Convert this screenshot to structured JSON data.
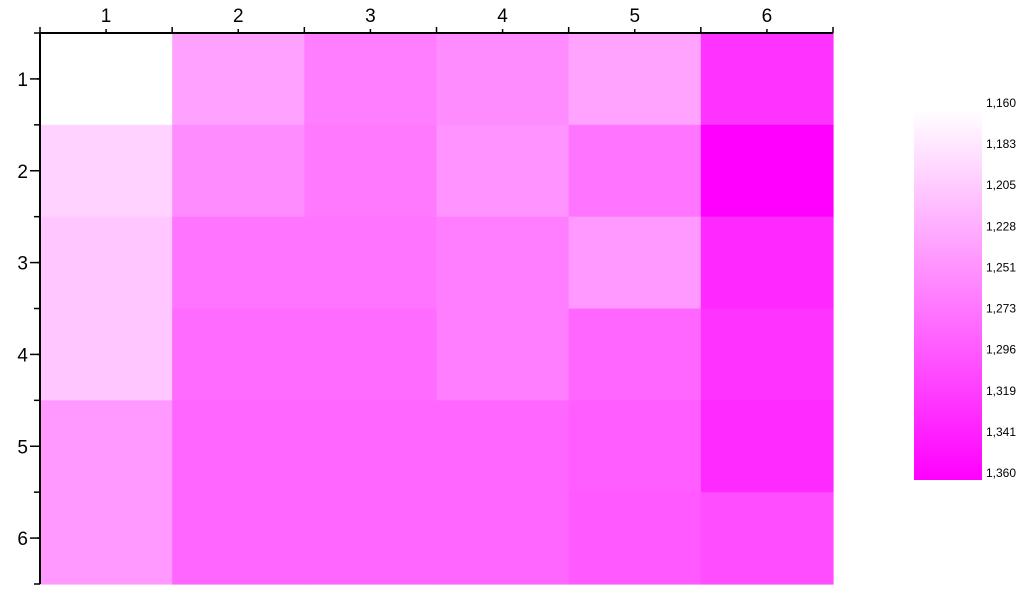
{
  "chart_data": {
    "type": "heatmap",
    "title": "",
    "xlabel": "",
    "ylabel": "",
    "x_categories": [
      "1",
      "2",
      "3",
      "4",
      "5",
      "6"
    ],
    "y_categories": [
      "1",
      "2",
      "3",
      "4",
      "5",
      "6"
    ],
    "x_axis_position": "top",
    "values": [
      [
        1160,
        1234,
        1262,
        1250,
        1232,
        1320
      ],
      [
        1195,
        1250,
        1265,
        1245,
        1268,
        1360
      ],
      [
        1205,
        1268,
        1268,
        1262,
        1240,
        1328
      ],
      [
        1205,
        1276,
        1276,
        1262,
        1280,
        1320
      ],
      [
        1240,
        1280,
        1280,
        1280,
        1287,
        1327
      ],
      [
        1240,
        1280,
        1280,
        1280,
        1290,
        1300
      ]
    ],
    "colorbar": {
      "labels": [
        "1,160",
        "1,183",
        "1,205",
        "1,228",
        "1,251",
        "1,273",
        "1,296",
        "1,319",
        "1,341",
        "1,360"
      ],
      "min": 1160,
      "max": 1360,
      "low_color": "#ffffff",
      "high_color": "#ff00ff",
      "placement": "right"
    },
    "grid": false,
    "legend": "none"
  }
}
